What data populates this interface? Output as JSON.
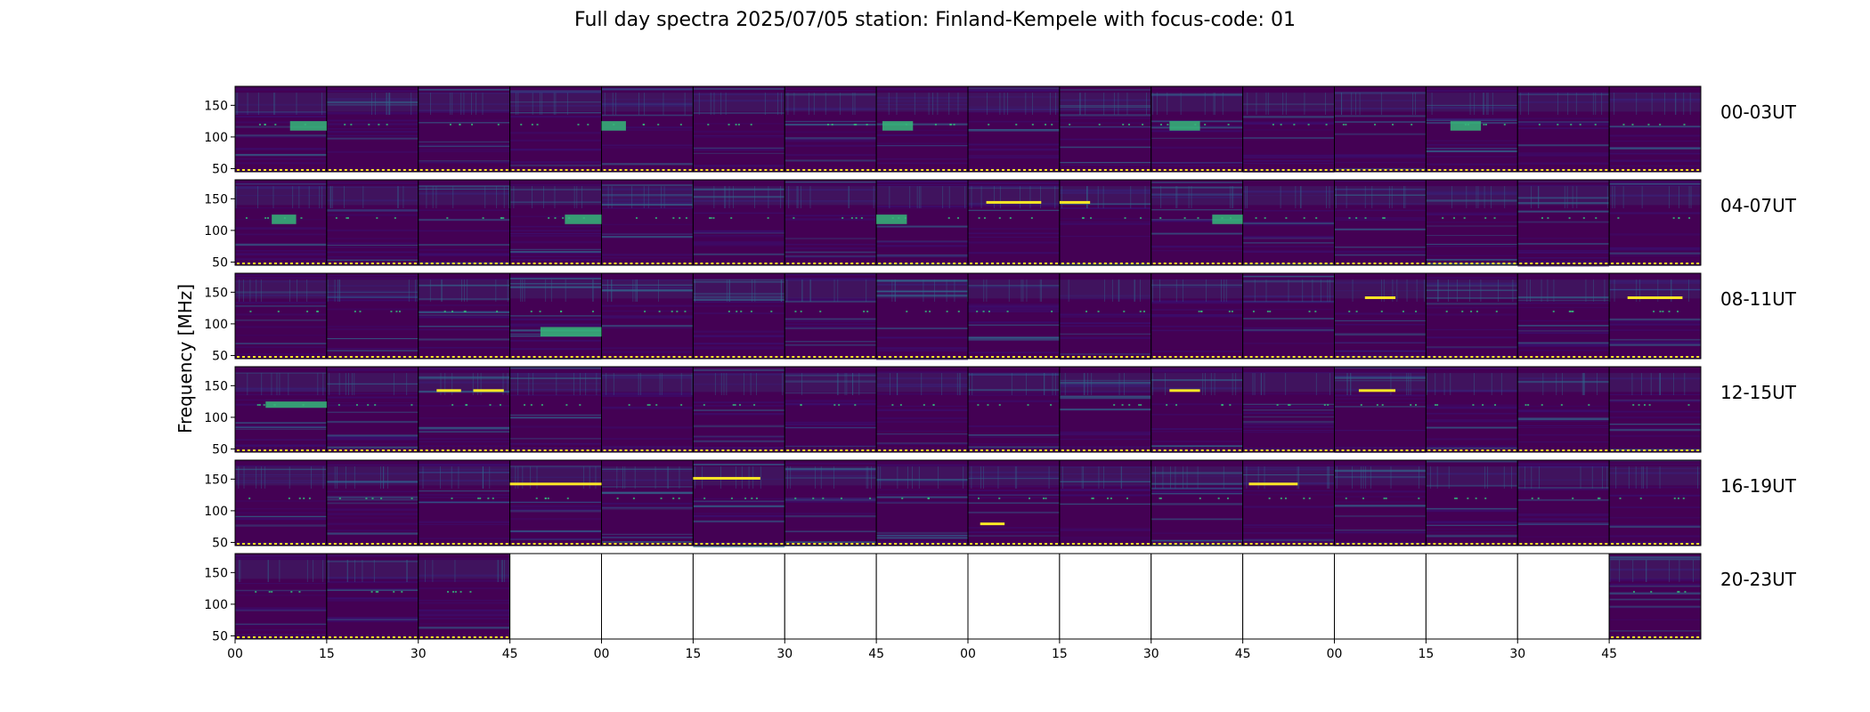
{
  "chart_data": {
    "type": "heatmap",
    "title": "Full day spectra 2025/07/05 station: Finland-Kempele with focus-code: 01",
    "ylabel": "Frequency [MHz]",
    "xlabel": "",
    "colormap": "viridis",
    "colors": {
      "background": "#440154",
      "dark": "#3b0f70",
      "mid": "#31688e",
      "teal": "#35b779",
      "bright": "#fde725",
      "marker_yellow": "#fde725"
    },
    "ylim": [
      45,
      180
    ],
    "yticks": [
      50,
      100,
      150
    ],
    "xtick_labels": [
      "00",
      "15",
      "30",
      "45",
      "00",
      "15",
      "30",
      "45",
      "00",
      "15",
      "30",
      "45",
      "00",
      "15",
      "30",
      "45"
    ],
    "panels_per_row": 16,
    "minutes_per_panel": 15,
    "rows": [
      {
        "label": "00-03UT",
        "panels_present": [
          1,
          1,
          1,
          1,
          1,
          1,
          1,
          1,
          1,
          1,
          1,
          1,
          1,
          1,
          1,
          1
        ]
      },
      {
        "label": "04-07UT",
        "panels_present": [
          1,
          1,
          1,
          1,
          1,
          1,
          1,
          1,
          1,
          1,
          1,
          1,
          1,
          1,
          1,
          1
        ]
      },
      {
        "label": "08-11UT",
        "panels_present": [
          1,
          1,
          1,
          1,
          1,
          1,
          1,
          1,
          1,
          1,
          1,
          1,
          1,
          1,
          1,
          1
        ]
      },
      {
        "label": "12-15UT",
        "panels_present": [
          1,
          1,
          1,
          1,
          1,
          1,
          1,
          1,
          1,
          1,
          1,
          1,
          1,
          1,
          1,
          1
        ]
      },
      {
        "label": "16-19UT",
        "panels_present": [
          1,
          1,
          1,
          1,
          1,
          1,
          1,
          1,
          1,
          1,
          1,
          1,
          1,
          1,
          1,
          1
        ]
      },
      {
        "label": "20-23UT",
        "panels_present": [
          1,
          1,
          1,
          0,
          0,
          0,
          0,
          0,
          0,
          0,
          0,
          0,
          0,
          0,
          0,
          1
        ]
      }
    ],
    "recurring_bursts": [
      {
        "row": 0,
        "panel": 0,
        "freq": [
          110,
          125
        ],
        "minutes": [
          9,
          15
        ]
      },
      {
        "row": 0,
        "panel": 4,
        "freq": [
          110,
          125
        ],
        "minutes": [
          0,
          4
        ]
      },
      {
        "row": 0,
        "panel": 7,
        "freq": [
          110,
          125
        ],
        "minutes": [
          1,
          6
        ]
      },
      {
        "row": 0,
        "panel": 10,
        "freq": [
          110,
          125
        ],
        "minutes": [
          3,
          8
        ]
      },
      {
        "row": 0,
        "panel": 13,
        "freq": [
          110,
          125
        ],
        "minutes": [
          4,
          9
        ]
      },
      {
        "row": 1,
        "panel": 0,
        "freq": [
          110,
          125
        ],
        "minutes": [
          6,
          10
        ]
      },
      {
        "row": 1,
        "panel": 3,
        "freq": [
          110,
          125
        ],
        "minutes": [
          9,
          15
        ]
      },
      {
        "row": 1,
        "panel": 7,
        "freq": [
          110,
          125
        ],
        "minutes": [
          0,
          5
        ]
      },
      {
        "row": 1,
        "panel": 10,
        "freq": [
          110,
          125
        ],
        "minutes": [
          10,
          15
        ]
      },
      {
        "row": 2,
        "panel": 3,
        "freq": [
          80,
          95
        ],
        "minutes": [
          5,
          15
        ]
      },
      {
        "row": 3,
        "panel": 0,
        "freq": [
          115,
          125
        ],
        "minutes": [
          5,
          15
        ]
      }
    ],
    "bright_lines": [
      {
        "row": 1,
        "panel": 8,
        "freq": 145,
        "minutes": [
          3,
          12
        ]
      },
      {
        "row": 1,
        "panel": 9,
        "freq": 145,
        "minutes": [
          0,
          5
        ]
      },
      {
        "row": 2,
        "panel": 12,
        "freq": 142,
        "minutes": [
          5,
          10
        ]
      },
      {
        "row": 2,
        "panel": 15,
        "freq": 142,
        "minutes": [
          3,
          12
        ]
      },
      {
        "row": 3,
        "panel": 2,
        "freq": 143,
        "minutes": [
          3,
          7
        ]
      },
      {
        "row": 3,
        "panel": 2,
        "freq": 143,
        "minutes": [
          9,
          14
        ]
      },
      {
        "row": 3,
        "panel": 10,
        "freq": 143,
        "minutes": [
          3,
          8
        ]
      },
      {
        "row": 3,
        "panel": 12,
        "freq": 143,
        "minutes": [
          4,
          10
        ]
      },
      {
        "row": 4,
        "panel": 3,
        "freq": 143,
        "minutes": [
          0,
          15
        ]
      },
      {
        "row": 4,
        "panel": 5,
        "freq": 152,
        "minutes": [
          0,
          11
        ]
      },
      {
        "row": 4,
        "panel": 8,
        "freq": 80,
        "minutes": [
          2,
          6
        ]
      },
      {
        "row": 4,
        "panel": 11,
        "freq": 143,
        "minutes": [
          1,
          9
        ]
      }
    ]
  }
}
